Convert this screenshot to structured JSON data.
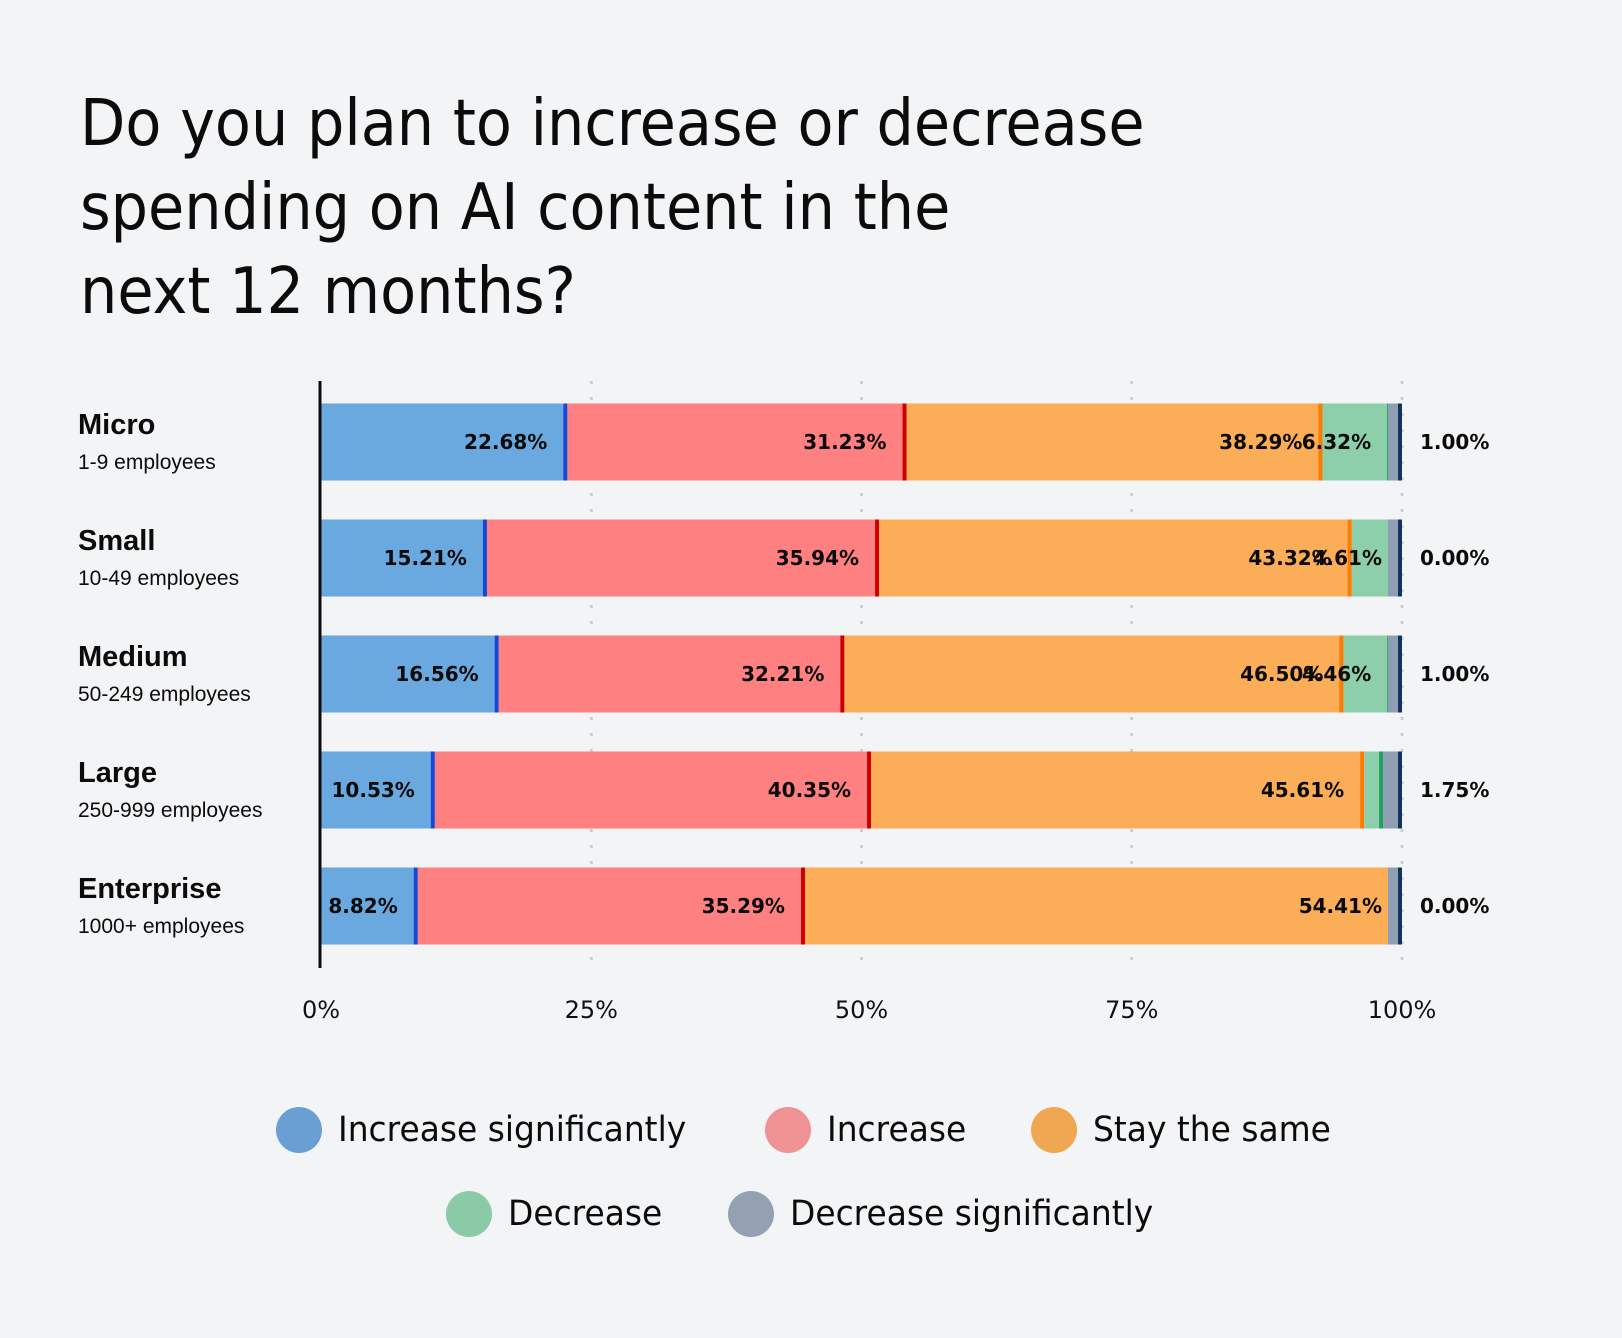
{
  "chart_data": {
    "type": "bar",
    "orientation": "horizontal",
    "stacked": true,
    "title": "Do you plan to increase or decrease spending on AI content in the next 12 months?",
    "title_lines": [
      "Do you plan to increase or decrease",
      "spending on AI content in the",
      "next 12 months?"
    ],
    "xlabel": "",
    "ylabel": "",
    "xlim": [
      0,
      100
    ],
    "x_ticks": [
      0,
      25,
      50,
      75,
      100
    ],
    "x_tick_labels": [
      "0%",
      "25%",
      "50%",
      "75%",
      "100%"
    ],
    "grid": "vertical-dotted",
    "legend_position": "bottom-center",
    "categories": [
      {
        "name": "Micro",
        "sub": "1-9 employees"
      },
      {
        "name": "Small",
        "sub": "10-49 employees"
      },
      {
        "name": "Medium",
        "sub": "50-249 employees"
      },
      {
        "name": "Large",
        "sub": "250-999 employees"
      },
      {
        "name": "Enterprise",
        "sub": "1000+ employees"
      }
    ],
    "series": [
      {
        "name": "Increase significantly",
        "color": "#6aa9e0",
        "edge": "#1547d8",
        "legend_color": "#6a9fd3",
        "values": [
          22.68,
          15.21,
          16.56,
          10.53,
          8.82
        ],
        "labels": [
          "22.68%",
          "15.21%",
          "16.56%",
          "10.53%",
          "8.82%"
        ]
      },
      {
        "name": "Increase",
        "color": "#ff8080",
        "edge": "#cc0000",
        "legend_color": "#ee9293",
        "values": [
          31.23,
          35.94,
          32.21,
          40.35,
          35.29
        ],
        "labels": [
          "31.23%",
          "35.94%",
          "32.21%",
          "40.35%",
          "35.29%"
        ]
      },
      {
        "name": "Stay the same",
        "color": "#fbad57",
        "edge": "#ff7a00",
        "legend_color": "#f0a752",
        "values": [
          38.29,
          43.32,
          46.5,
          45.61,
          54.41
        ],
        "labels": [
          "38.29%",
          "43.32%",
          "46.50%",
          "45.61%",
          "54.41%"
        ]
      },
      {
        "name": "Decrease",
        "color": "#8ccfaa",
        "edge": "#22a060",
        "legend_color": "#8acaa6",
        "values": [
          6.32,
          4.61,
          4.46,
          1.75,
          0.0
        ],
        "labels": [
          "6.32%",
          "4.61%",
          "4.46%",
          "",
          ""
        ]
      },
      {
        "name": "Decrease significantly",
        "color": "#8f9fb3",
        "edge": "#14335f",
        "legend_color": "#93a1b3",
        "values": [
          1.0,
          0.0,
          1.0,
          1.75,
          0.0
        ],
        "labels": [
          "1.00%",
          "0.00%",
          "1.00%",
          "1.75%",
          "0.00%"
        ],
        "label_position": "outside-right"
      }
    ]
  }
}
